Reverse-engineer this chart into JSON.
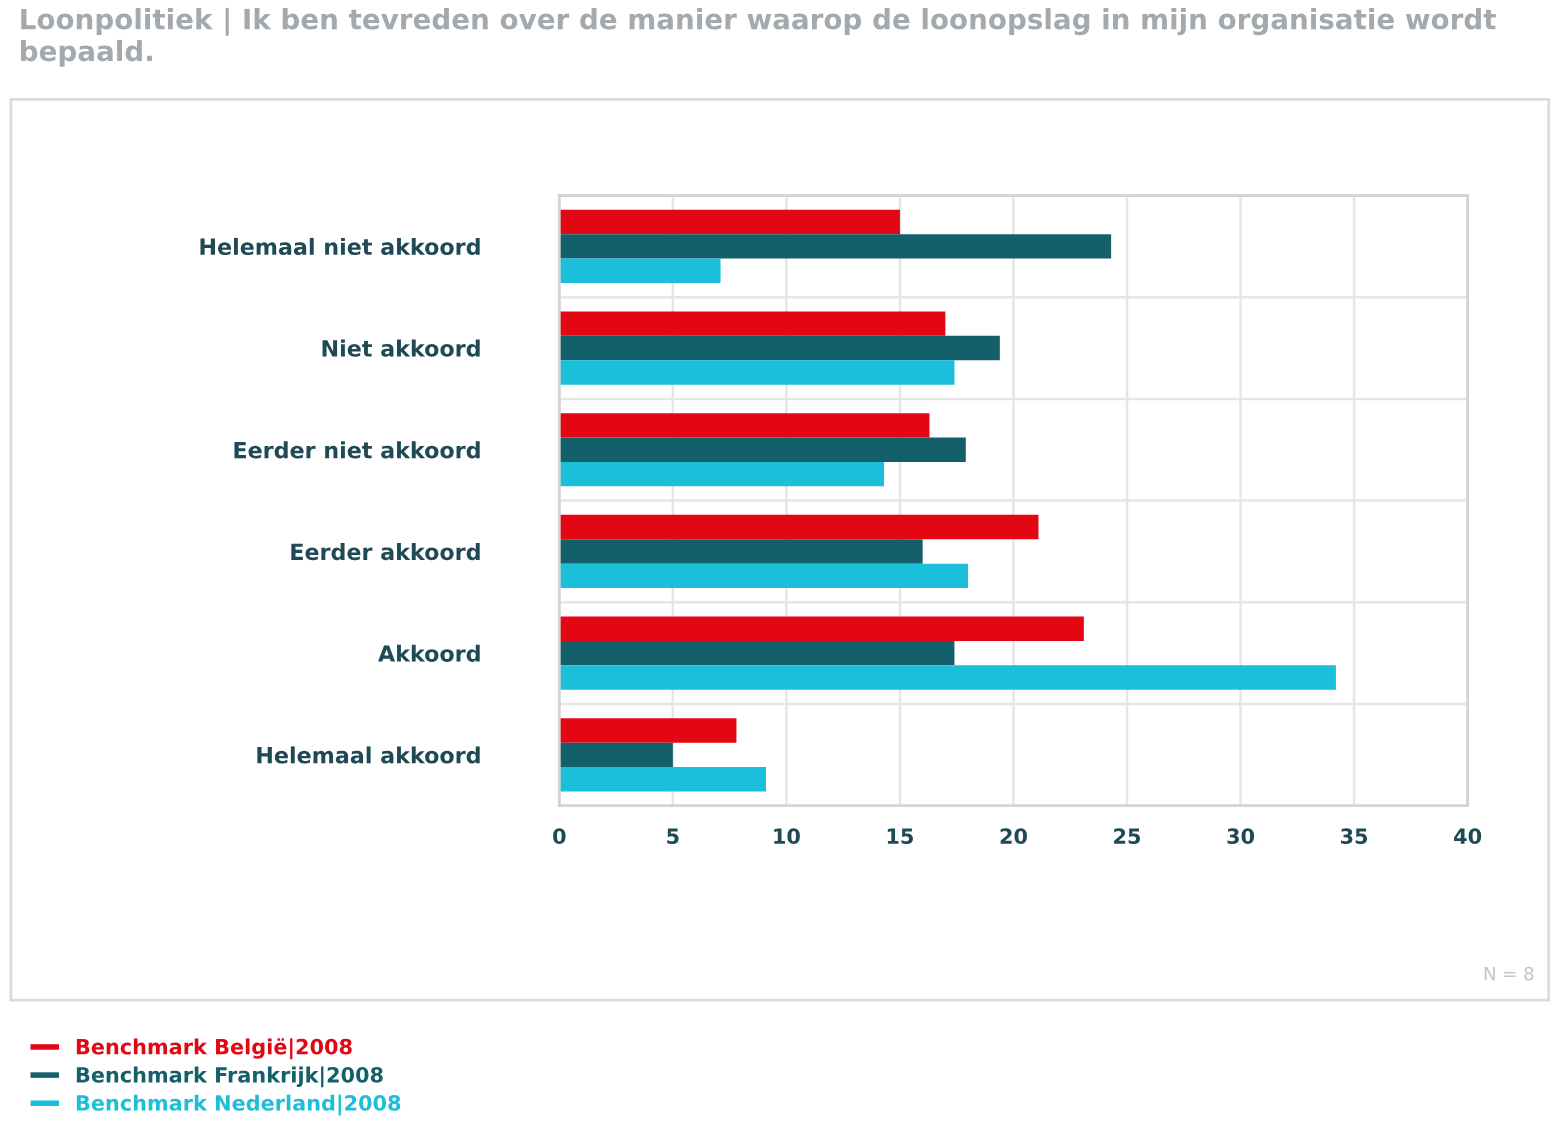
{
  "chart_data": {
    "type": "bar",
    "orientation": "horizontal",
    "title": "Loonpolitiek | Ik ben tevreden over de manier waarop de loonopslag in mijn organisatie wordt bepaald.",
    "annotations": [
      "N = 8"
    ],
    "categories": [
      "Helemaal niet akkoord",
      "Niet akkoord",
      "Eerder niet akkoord",
      "Eerder akkoord",
      "Akkoord",
      "Helemaal akkoord"
    ],
    "series": [
      {
        "name": "Benchmark België|2008",
        "color": "#e30613",
        "values": [
          15.0,
          17.0,
          16.3,
          21.1,
          23.1,
          7.8
        ]
      },
      {
        "name": "Benchmark Frankrijk|2008",
        "color": "#135f6a",
        "values": [
          24.3,
          19.4,
          17.9,
          16.0,
          17.4,
          5.0
        ]
      },
      {
        "name": "Benchmark Nederland|2008",
        "color": "#1bbfd9",
        "values": [
          7.1,
          17.4,
          14.3,
          18.0,
          34.2,
          9.1
        ]
      }
    ],
    "xlim": [
      0,
      40
    ],
    "xticks": [
      0,
      5,
      10,
      15,
      20,
      25,
      30,
      35,
      40
    ],
    "grid": true,
    "legend": "bottom left"
  }
}
